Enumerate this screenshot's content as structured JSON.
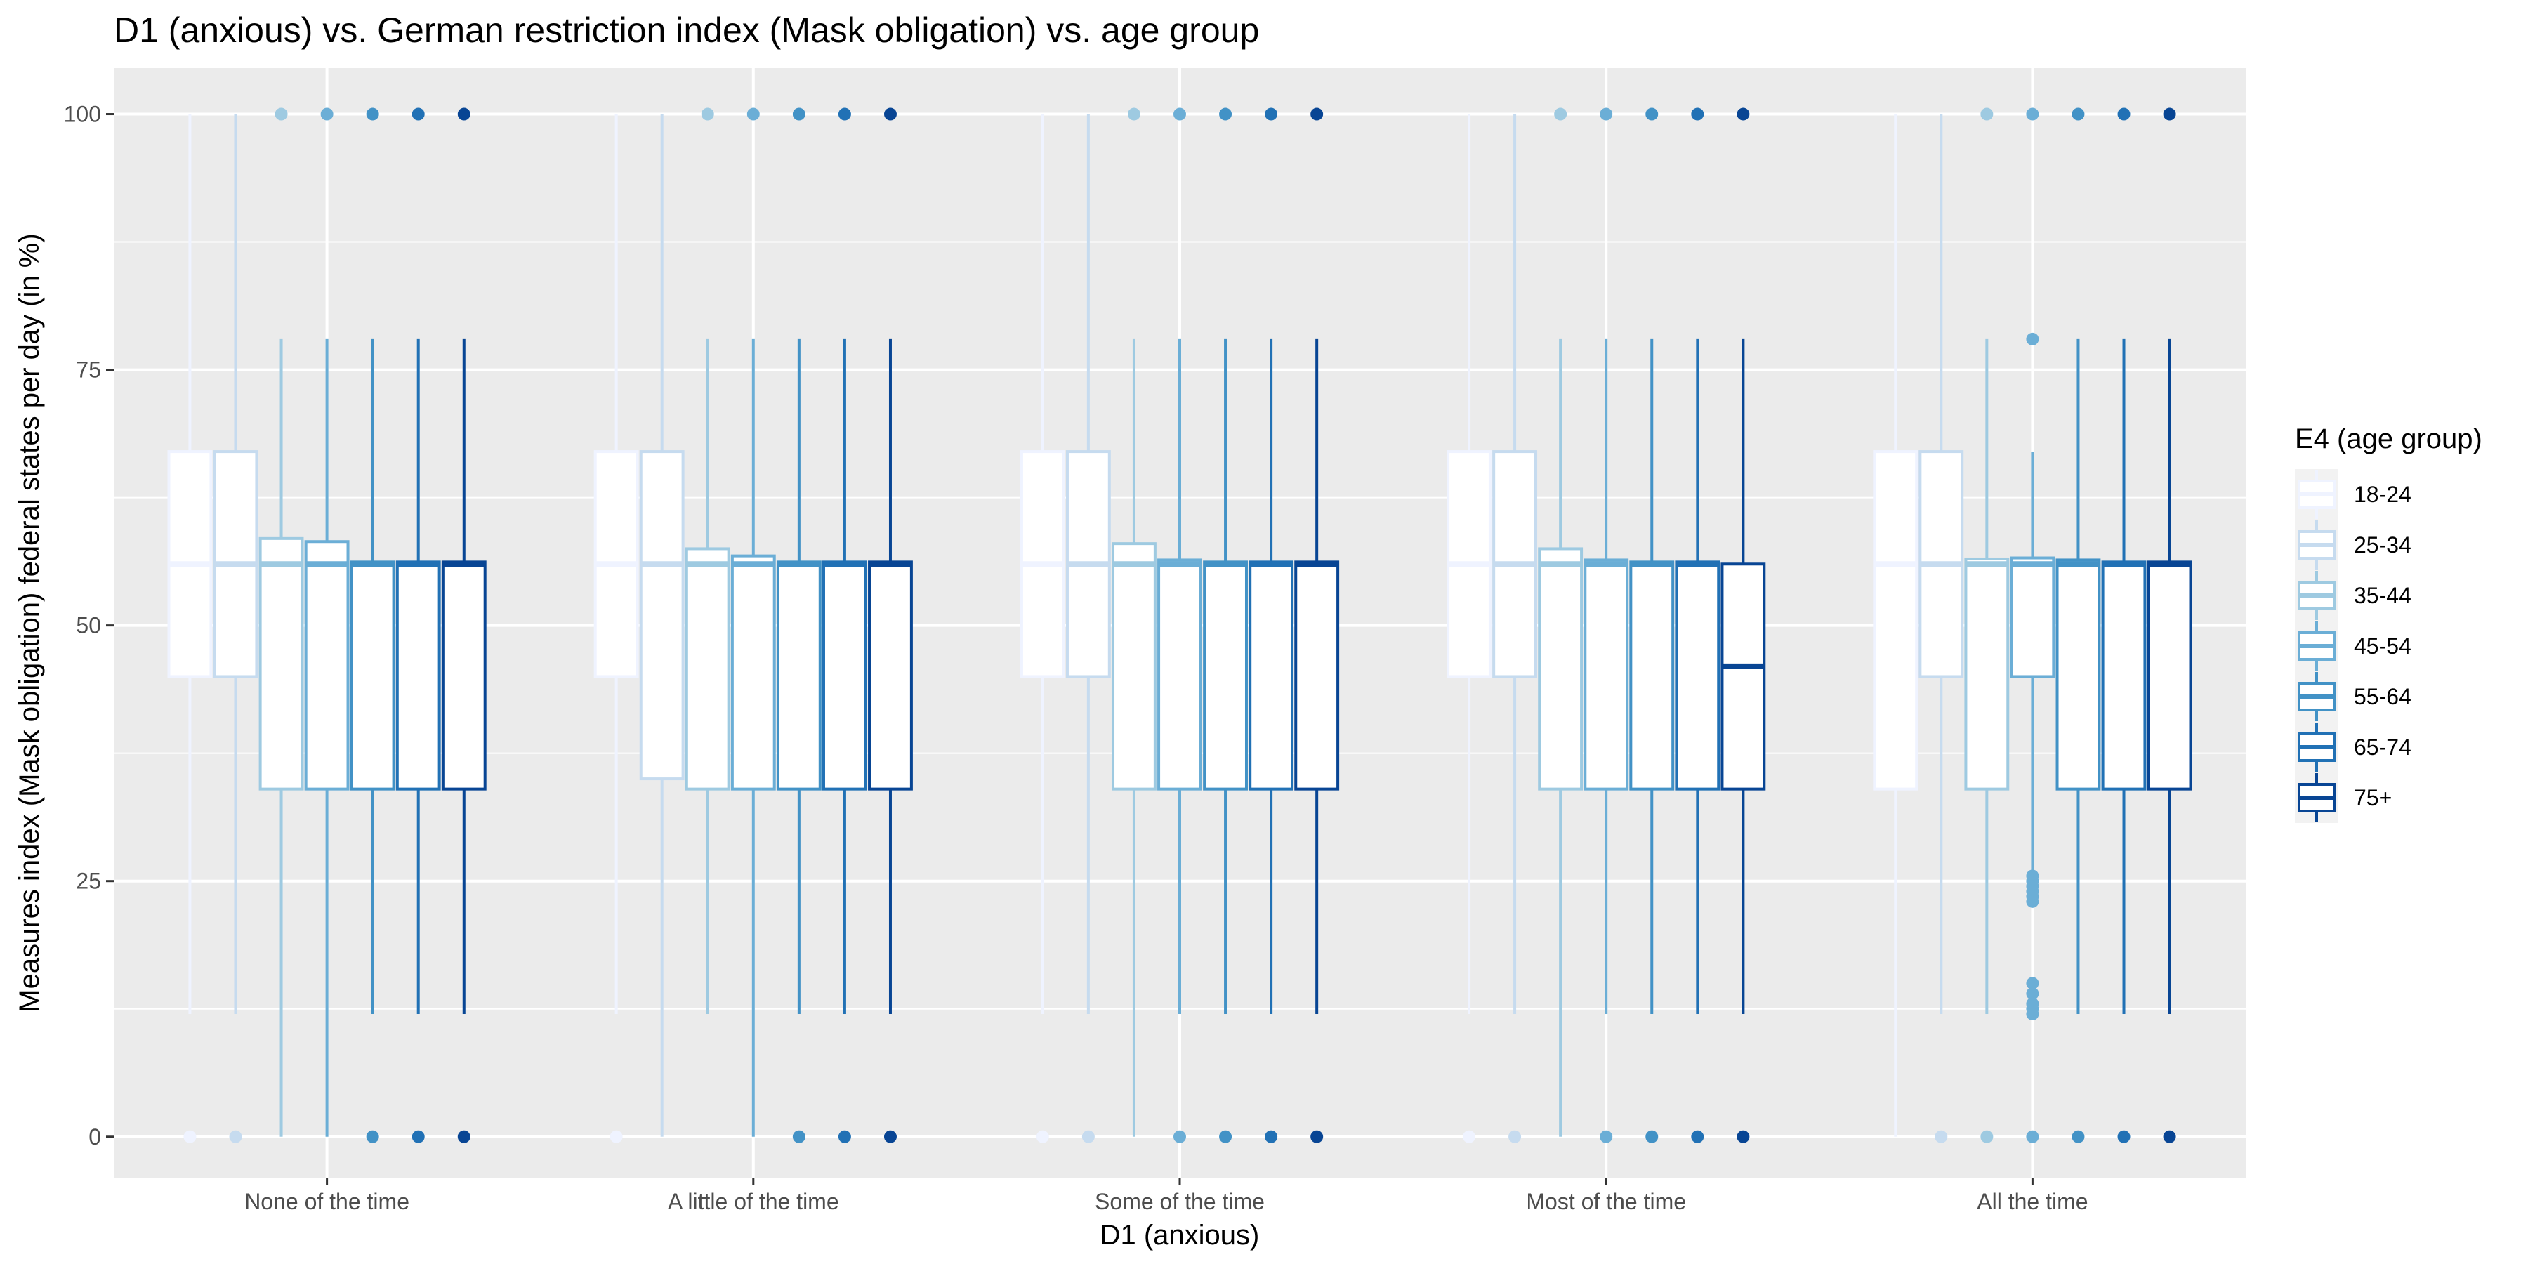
{
  "chart_data": {
    "type": "boxplot",
    "title": "D1 (anxious) vs. German restriction index (Mask obligation) vs. age group",
    "xlabel": "D1 (anxious)",
    "ylabel": "Measures index (Mask obligation) federal states per day (in %)",
    "ylim": [
      -4,
      104.5
    ],
    "yticks": [
      0,
      25,
      50,
      75,
      100
    ],
    "grid": true,
    "legend": {
      "title": "E4 (age group)",
      "placement": "right"
    },
    "categories": [
      "None of the time",
      "A little of the time",
      "Some of the time",
      "Most of the time",
      "All the time"
    ],
    "series": [
      {
        "name": "18-24",
        "color": "#eff3ff",
        "boxes": [
          {
            "min": 12,
            "q1": 45,
            "median": 56,
            "q3": 67,
            "max": 100,
            "outliers": [
              0
            ]
          },
          {
            "min": 12,
            "q1": 45,
            "median": 56,
            "q3": 67,
            "max": 100,
            "outliers": [
              0
            ]
          },
          {
            "min": 12,
            "q1": 45,
            "median": 56,
            "q3": 67,
            "max": 100,
            "outliers": [
              0
            ]
          },
          {
            "min": 12,
            "q1": 45,
            "median": 56,
            "q3": 67,
            "max": 100,
            "outliers": [
              0
            ]
          },
          {
            "min": 0,
            "q1": 34,
            "median": 56,
            "q3": 67,
            "max": 100,
            "outliers": []
          }
        ]
      },
      {
        "name": "25-34",
        "color": "#c6dbef",
        "boxes": [
          {
            "min": 12,
            "q1": 45,
            "median": 56,
            "q3": 67,
            "max": 100,
            "outliers": [
              0
            ]
          },
          {
            "min": 0,
            "q1": 35,
            "median": 56,
            "q3": 67,
            "max": 100,
            "outliers": []
          },
          {
            "min": 12,
            "q1": 45,
            "median": 56,
            "q3": 67,
            "max": 100,
            "outliers": [
              0
            ]
          },
          {
            "min": 12,
            "q1": 45,
            "median": 56,
            "q3": 67,
            "max": 100,
            "outliers": [
              0
            ]
          },
          {
            "min": 12,
            "q1": 45,
            "median": 56,
            "q3": 67,
            "max": 100,
            "outliers": [
              0
            ]
          }
        ]
      },
      {
        "name": "35-44",
        "color": "#9ecae1",
        "boxes": [
          {
            "min": 0,
            "q1": 34,
            "median": 56,
            "q3": 58.5,
            "max": 78,
            "outliers": [
              100
            ]
          },
          {
            "min": 12,
            "q1": 34,
            "median": 56,
            "q3": 57.5,
            "max": 78,
            "outliers": [
              100
            ]
          },
          {
            "min": 0,
            "q1": 34,
            "median": 56,
            "q3": 58,
            "max": 78,
            "outliers": [
              100
            ]
          },
          {
            "min": 0,
            "q1": 34,
            "median": 56,
            "q3": 57.5,
            "max": 78,
            "outliers": [
              100
            ]
          },
          {
            "min": 12,
            "q1": 34,
            "median": 56,
            "q3": 56.5,
            "max": 78,
            "outliers": [
              100,
              0
            ]
          }
        ]
      },
      {
        "name": "45-54",
        "color": "#6baed6",
        "boxes": [
          {
            "min": 0,
            "q1": 34,
            "median": 56,
            "q3": 58.2,
            "max": 78,
            "outliers": [
              100
            ]
          },
          {
            "min": 0,
            "q1": 34,
            "median": 56,
            "q3": 56.8,
            "max": 78,
            "outliers": [
              100
            ]
          },
          {
            "min": 12,
            "q1": 34,
            "median": 56,
            "q3": 56.4,
            "max": 78,
            "outliers": [
              100,
              0
            ]
          },
          {
            "min": 12,
            "q1": 34,
            "median": 56,
            "q3": 56.4,
            "max": 78,
            "outliers": [
              100,
              0
            ]
          },
          {
            "min": 26,
            "q1": 45,
            "median": 56,
            "q3": 56.6,
            "max": 67,
            "outliers": [
              100,
              78,
              25.5,
              25,
              24.5,
              24,
              23.5,
              23,
              15,
              14,
              13,
              12.5,
              12,
              0
            ]
          }
        ]
      },
      {
        "name": "55-64",
        "color": "#4292c6",
        "boxes": [
          {
            "min": 12,
            "q1": 34,
            "median": 56,
            "q3": 56.2,
            "max": 78,
            "outliers": [
              100,
              0
            ]
          },
          {
            "min": 12,
            "q1": 34,
            "median": 56,
            "q3": 56.2,
            "max": 78,
            "outliers": [
              100,
              0
            ]
          },
          {
            "min": 12,
            "q1": 34,
            "median": 56,
            "q3": 56.2,
            "max": 78,
            "outliers": [
              100,
              0
            ]
          },
          {
            "min": 12,
            "q1": 34,
            "median": 56,
            "q3": 56.2,
            "max": 78,
            "outliers": [
              100,
              0
            ]
          },
          {
            "min": 12,
            "q1": 34,
            "median": 56,
            "q3": 56.4,
            "max": 78,
            "outliers": [
              100,
              0
            ]
          }
        ]
      },
      {
        "name": "65-74",
        "color": "#2171b5",
        "boxes": [
          {
            "min": 12,
            "q1": 34,
            "median": 56,
            "q3": 56.2,
            "max": 78,
            "outliers": [
              100,
              0
            ]
          },
          {
            "min": 12,
            "q1": 34,
            "median": 56,
            "q3": 56.2,
            "max": 78,
            "outliers": [
              100,
              0
            ]
          },
          {
            "min": 12,
            "q1": 34,
            "median": 56,
            "q3": 56.2,
            "max": 78,
            "outliers": [
              100,
              0
            ]
          },
          {
            "min": 12,
            "q1": 34,
            "median": 56,
            "q3": 56.2,
            "max": 78,
            "outliers": [
              100,
              0
            ]
          },
          {
            "min": 12,
            "q1": 34,
            "median": 56,
            "q3": 56.2,
            "max": 78,
            "outliers": [
              100,
              0
            ]
          }
        ]
      },
      {
        "name": "75+",
        "color": "#084594",
        "boxes": [
          {
            "min": 12,
            "q1": 34,
            "median": 56,
            "q3": 56.2,
            "max": 78,
            "outliers": [
              100,
              0
            ]
          },
          {
            "min": 12,
            "q1": 34,
            "median": 56,
            "q3": 56.2,
            "max": 78,
            "outliers": [
              100,
              0
            ]
          },
          {
            "min": 12,
            "q1": 34,
            "median": 56,
            "q3": 56.2,
            "max": 78,
            "outliers": [
              100,
              0
            ]
          },
          {
            "min": 12,
            "q1": 34,
            "median": 46,
            "q3": 56,
            "max": 78,
            "outliers": [
              100,
              0
            ]
          },
          {
            "min": 12,
            "q1": 34,
            "median": 56,
            "q3": 56.2,
            "max": 78,
            "outliers": [
              100,
              0
            ]
          }
        ]
      }
    ]
  }
}
